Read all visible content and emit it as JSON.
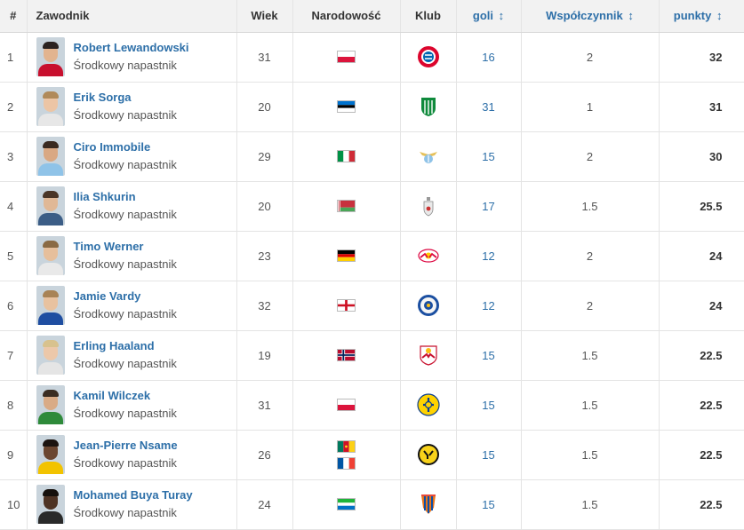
{
  "columns": {
    "rank": "#",
    "player": "Zawodnik",
    "age": "Wiek",
    "nationality": "Narodowość",
    "club": "Klub",
    "goals": "goli",
    "coefficient": "Współczynnik",
    "points": "punkty",
    "sort_glyph": "↕"
  },
  "rows": [
    {
      "rank": "1",
      "name": "Robert Lewandowski",
      "position": "Środkowy napastnik",
      "age": "31",
      "flags": [
        "poland"
      ],
      "club_icon": "bayern-crest",
      "goals": "16",
      "coef": "2",
      "points": "32",
      "skin": "#e2b48f",
      "hair": "#2b2220",
      "shirt": "#c8102e"
    },
    {
      "rank": "2",
      "name": "Erik Sorga",
      "position": "Środkowy napastnik",
      "age": "20",
      "flags": [
        "estonia"
      ],
      "club_icon": "flora-crest",
      "goals": "31",
      "coef": "1",
      "points": "31",
      "skin": "#ecc5a5",
      "hair": "#b08a5a",
      "shirt": "#e7e7e7"
    },
    {
      "rank": "3",
      "name": "Ciro Immobile",
      "position": "Środkowy napastnik",
      "age": "29",
      "flags": [
        "italy"
      ],
      "club_icon": "lazio-crest",
      "goals": "15",
      "coef": "2",
      "points": "30",
      "skin": "#d9a883",
      "hair": "#3a2a20",
      "shirt": "#8fc3e8"
    },
    {
      "rank": "4",
      "name": "Ilia Shkurin",
      "position": "Środkowy napastnik",
      "age": "20",
      "flags": [
        "belarus"
      ],
      "club_icon": "dinamo-crest",
      "goals": "17",
      "coef": "1.5",
      "points": "25.5",
      "skin": "#e0b896",
      "hair": "#4a3526",
      "shirt": "#3b5d86"
    },
    {
      "rank": "5",
      "name": "Timo Werner",
      "position": "Środkowy napastnik",
      "age": "23",
      "flags": [
        "germany"
      ],
      "club_icon": "leipzig-crest",
      "goals": "12",
      "coef": "2",
      "points": "24",
      "skin": "#e6bf9c",
      "hair": "#8a6a44",
      "shirt": "#e9e9e9"
    },
    {
      "rank": "6",
      "name": "Jamie Vardy",
      "position": "Środkowy napastnik",
      "age": "32",
      "flags": [
        "england"
      ],
      "club_icon": "leicester-crest",
      "goals": "12",
      "coef": "2",
      "points": "24",
      "skin": "#e8c2a0",
      "hair": "#a88356",
      "shirt": "#1f4ea1"
    },
    {
      "rank": "7",
      "name": "Erling Haaland",
      "position": "Środkowy napastnik",
      "age": "19",
      "flags": [
        "norway"
      ],
      "club_icon": "salzburg-crest",
      "goals": "15",
      "coef": "1.5",
      "points": "22.5",
      "skin": "#ecc8aa",
      "hair": "#d8c28e",
      "shirt": "#e5e5e5"
    },
    {
      "rank": "8",
      "name": "Kamil Wilczek",
      "position": "Środkowy napastnik",
      "age": "31",
      "flags": [
        "poland"
      ],
      "club_icon": "brondby-crest",
      "goals": "15",
      "coef": "1.5",
      "points": "22.5",
      "skin": "#d9ab86",
      "hair": "#3b2d22",
      "shirt": "#2e8a3a"
    },
    {
      "rank": "9",
      "name": "Jean-Pierre Nsame",
      "position": "Środkowy napastnik",
      "age": "26",
      "flags": [
        "cameroon",
        "france"
      ],
      "club_icon": "young-boys-crest",
      "goals": "15",
      "coef": "1.5",
      "points": "22.5",
      "skin": "#6b4630",
      "hair": "#1c1410",
      "shirt": "#f2c300"
    },
    {
      "rank": "10",
      "name": "Mohamed Buya Turay",
      "position": "Środkowy napastnik",
      "age": "24",
      "flags": [
        "sierra-leone"
      ],
      "club_icon": "djurgarden-crest",
      "goals": "15",
      "coef": "1.5",
      "points": "22.5",
      "skin": "#4e3324",
      "hair": "#15100c",
      "shirt": "#2a2a2a"
    }
  ]
}
